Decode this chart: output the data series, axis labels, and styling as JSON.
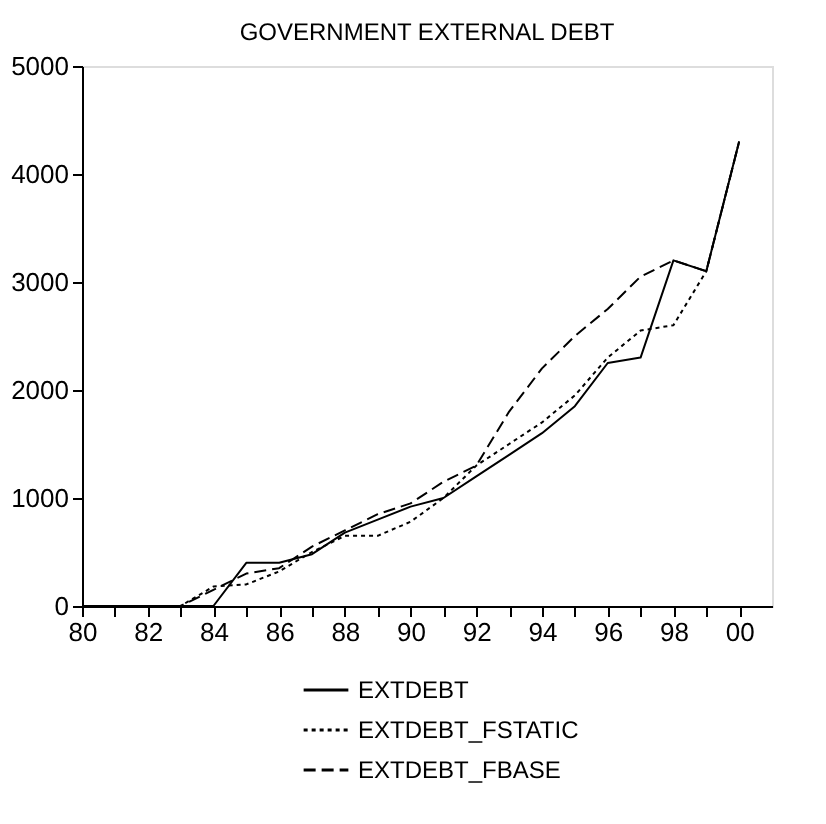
{
  "chart_data": {
    "type": "line",
    "title": "GOVERNMENT EXTERNAL DEBT",
    "x": [
      1980,
      1981,
      1982,
      1983,
      1984,
      1985,
      1986,
      1987,
      1988,
      1989,
      1990,
      1991,
      1992,
      1993,
      1994,
      1995,
      1996,
      1997,
      1998,
      1999,
      2000
    ],
    "series": [
      {
        "name": "EXTDEBT",
        "color": "#000000",
        "line_style": "solid",
        "values": [
          0,
          0,
          0,
          0,
          0,
          400,
          400,
          480,
          680,
          800,
          920,
          1000,
          1200,
          1400,
          1600,
          1850,
          2250,
          2300,
          3200,
          3100,
          4300
        ]
      },
      {
        "name": "EXTDEBT_FSTATIC",
        "color": "#000000",
        "line_style": "dotted",
        "values": [
          0,
          0,
          0,
          0,
          180,
          200,
          320,
          500,
          650,
          650,
          780,
          1000,
          1300,
          1500,
          1700,
          1950,
          2300,
          2550,
          2600,
          3100,
          4300
        ]
      },
      {
        "name": "EXTDEBT_FBASE",
        "color": "#000000",
        "line_style": "dashed",
        "values": [
          0,
          0,
          0,
          0,
          150,
          300,
          350,
          550,
          700,
          850,
          950,
          1150,
          1300,
          1800,
          2200,
          2500,
          2750,
          3050,
          3200,
          3100,
          4300
        ]
      }
    ],
    "xlim": [
      1980,
      2001
    ],
    "xticks": [
      {
        "value": 1980,
        "label": "80"
      },
      {
        "value": 1981,
        "label": null
      },
      {
        "value": 1982,
        "label": "82"
      },
      {
        "value": 1983,
        "label": null
      },
      {
        "value": 1984,
        "label": "84"
      },
      {
        "value": 1985,
        "label": null
      },
      {
        "value": 1986,
        "label": "86"
      },
      {
        "value": 1987,
        "label": null
      },
      {
        "value": 1988,
        "label": "88"
      },
      {
        "value": 1989,
        "label": null
      },
      {
        "value": 1990,
        "label": "90"
      },
      {
        "value": 1991,
        "label": null
      },
      {
        "value": 1992,
        "label": "92"
      },
      {
        "value": 1993,
        "label": null
      },
      {
        "value": 1994,
        "label": "94"
      },
      {
        "value": 1995,
        "label": null
      },
      {
        "value": 1996,
        "label": "96"
      },
      {
        "value": 1997,
        "label": null
      },
      {
        "value": 1998,
        "label": "98"
      },
      {
        "value": 1999,
        "label": null
      },
      {
        "value": 2000,
        "label": "00"
      }
    ],
    "ylim": [
      0,
      5000
    ],
    "yticks": [
      0,
      1000,
      2000,
      3000,
      4000,
      5000
    ],
    "grid": false,
    "legend": "bottom"
  }
}
